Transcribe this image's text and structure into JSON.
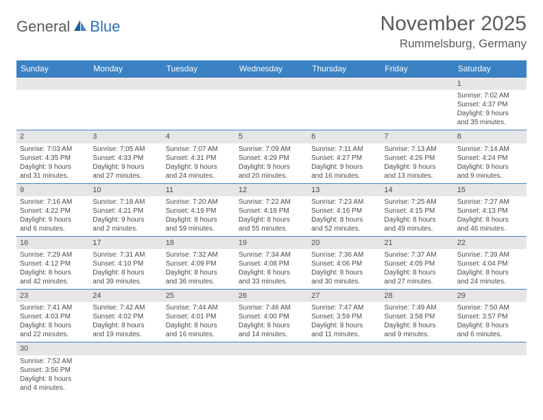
{
  "logo": {
    "part1": "General",
    "part2": "Blue"
  },
  "title": "November 2025",
  "subtitle": "Rummelsburg, Germany",
  "colors": {
    "header_bg": "#3b82c4",
    "header_text": "#ffffff",
    "daynum_bg": "#e6e6e6",
    "border": "#3b82c4",
    "text": "#4a4a4a"
  },
  "days": [
    "Sunday",
    "Monday",
    "Tuesday",
    "Wednesday",
    "Thursday",
    "Friday",
    "Saturday"
  ],
  "weeks": [
    [
      null,
      null,
      null,
      null,
      null,
      null,
      {
        "n": "1",
        "sr": "Sunrise: 7:02 AM",
        "ss": "Sunset: 4:37 PM",
        "d1": "Daylight: 9 hours",
        "d2": "and 35 minutes."
      }
    ],
    [
      {
        "n": "2",
        "sr": "Sunrise: 7:03 AM",
        "ss": "Sunset: 4:35 PM",
        "d1": "Daylight: 9 hours",
        "d2": "and 31 minutes."
      },
      {
        "n": "3",
        "sr": "Sunrise: 7:05 AM",
        "ss": "Sunset: 4:33 PM",
        "d1": "Daylight: 9 hours",
        "d2": "and 27 minutes."
      },
      {
        "n": "4",
        "sr": "Sunrise: 7:07 AM",
        "ss": "Sunset: 4:31 PM",
        "d1": "Daylight: 9 hours",
        "d2": "and 24 minutes."
      },
      {
        "n": "5",
        "sr": "Sunrise: 7:09 AM",
        "ss": "Sunset: 4:29 PM",
        "d1": "Daylight: 9 hours",
        "d2": "and 20 minutes."
      },
      {
        "n": "6",
        "sr": "Sunrise: 7:11 AM",
        "ss": "Sunset: 4:27 PM",
        "d1": "Daylight: 9 hours",
        "d2": "and 16 minutes."
      },
      {
        "n": "7",
        "sr": "Sunrise: 7:13 AM",
        "ss": "Sunset: 4:26 PM",
        "d1": "Daylight: 9 hours",
        "d2": "and 13 minutes."
      },
      {
        "n": "8",
        "sr": "Sunrise: 7:14 AM",
        "ss": "Sunset: 4:24 PM",
        "d1": "Daylight: 9 hours",
        "d2": "and 9 minutes."
      }
    ],
    [
      {
        "n": "9",
        "sr": "Sunrise: 7:16 AM",
        "ss": "Sunset: 4:22 PM",
        "d1": "Daylight: 9 hours",
        "d2": "and 6 minutes."
      },
      {
        "n": "10",
        "sr": "Sunrise: 7:18 AM",
        "ss": "Sunset: 4:21 PM",
        "d1": "Daylight: 9 hours",
        "d2": "and 2 minutes."
      },
      {
        "n": "11",
        "sr": "Sunrise: 7:20 AM",
        "ss": "Sunset: 4:19 PM",
        "d1": "Daylight: 8 hours",
        "d2": "and 59 minutes."
      },
      {
        "n": "12",
        "sr": "Sunrise: 7:22 AM",
        "ss": "Sunset: 4:18 PM",
        "d1": "Daylight: 8 hours",
        "d2": "and 55 minutes."
      },
      {
        "n": "13",
        "sr": "Sunrise: 7:23 AM",
        "ss": "Sunset: 4:16 PM",
        "d1": "Daylight: 8 hours",
        "d2": "and 52 minutes."
      },
      {
        "n": "14",
        "sr": "Sunrise: 7:25 AM",
        "ss": "Sunset: 4:15 PM",
        "d1": "Daylight: 8 hours",
        "d2": "and 49 minutes."
      },
      {
        "n": "15",
        "sr": "Sunrise: 7:27 AM",
        "ss": "Sunset: 4:13 PM",
        "d1": "Daylight: 8 hours",
        "d2": "and 46 minutes."
      }
    ],
    [
      {
        "n": "16",
        "sr": "Sunrise: 7:29 AM",
        "ss": "Sunset: 4:12 PM",
        "d1": "Daylight: 8 hours",
        "d2": "and 42 minutes."
      },
      {
        "n": "17",
        "sr": "Sunrise: 7:31 AM",
        "ss": "Sunset: 4:10 PM",
        "d1": "Daylight: 8 hours",
        "d2": "and 39 minutes."
      },
      {
        "n": "18",
        "sr": "Sunrise: 7:32 AM",
        "ss": "Sunset: 4:09 PM",
        "d1": "Daylight: 8 hours",
        "d2": "and 36 minutes."
      },
      {
        "n": "19",
        "sr": "Sunrise: 7:34 AM",
        "ss": "Sunset: 4:08 PM",
        "d1": "Daylight: 8 hours",
        "d2": "and 33 minutes."
      },
      {
        "n": "20",
        "sr": "Sunrise: 7:36 AM",
        "ss": "Sunset: 4:06 PM",
        "d1": "Daylight: 8 hours",
        "d2": "and 30 minutes."
      },
      {
        "n": "21",
        "sr": "Sunrise: 7:37 AM",
        "ss": "Sunset: 4:05 PM",
        "d1": "Daylight: 8 hours",
        "d2": "and 27 minutes."
      },
      {
        "n": "22",
        "sr": "Sunrise: 7:39 AM",
        "ss": "Sunset: 4:04 PM",
        "d1": "Daylight: 8 hours",
        "d2": "and 24 minutes."
      }
    ],
    [
      {
        "n": "23",
        "sr": "Sunrise: 7:41 AM",
        "ss": "Sunset: 4:03 PM",
        "d1": "Daylight: 8 hours",
        "d2": "and 22 minutes."
      },
      {
        "n": "24",
        "sr": "Sunrise: 7:42 AM",
        "ss": "Sunset: 4:02 PM",
        "d1": "Daylight: 8 hours",
        "d2": "and 19 minutes."
      },
      {
        "n": "25",
        "sr": "Sunrise: 7:44 AM",
        "ss": "Sunset: 4:01 PM",
        "d1": "Daylight: 8 hours",
        "d2": "and 16 minutes."
      },
      {
        "n": "26",
        "sr": "Sunrise: 7:46 AM",
        "ss": "Sunset: 4:00 PM",
        "d1": "Daylight: 8 hours",
        "d2": "and 14 minutes."
      },
      {
        "n": "27",
        "sr": "Sunrise: 7:47 AM",
        "ss": "Sunset: 3:59 PM",
        "d1": "Daylight: 8 hours",
        "d2": "and 11 minutes."
      },
      {
        "n": "28",
        "sr": "Sunrise: 7:49 AM",
        "ss": "Sunset: 3:58 PM",
        "d1": "Daylight: 8 hours",
        "d2": "and 9 minutes."
      },
      {
        "n": "29",
        "sr": "Sunrise: 7:50 AM",
        "ss": "Sunset: 3:57 PM",
        "d1": "Daylight: 8 hours",
        "d2": "and 6 minutes."
      }
    ],
    [
      {
        "n": "30",
        "sr": "Sunrise: 7:52 AM",
        "ss": "Sunset: 3:56 PM",
        "d1": "Daylight: 8 hours",
        "d2": "and 4 minutes."
      },
      null,
      null,
      null,
      null,
      null,
      null
    ]
  ]
}
